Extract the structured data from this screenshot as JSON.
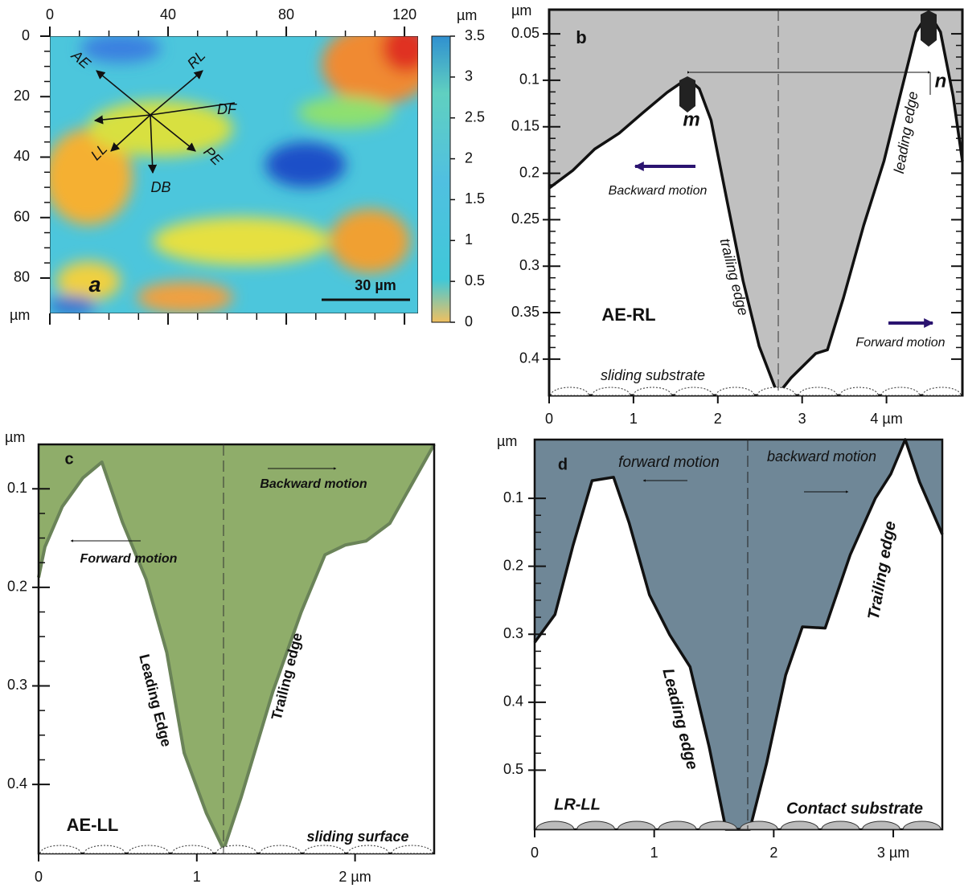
{
  "chart_data": [
    {
      "type": "image",
      "label": "a",
      "x_unit": "µm",
      "y_unit": "µm",
      "xlim": [
        0,
        124.6
      ],
      "ylim": [
        0,
        91.7
      ],
      "y_inverted": true,
      "xticks": [
        0,
        40,
        80,
        120
      ],
      "yticks": [
        0,
        20,
        40,
        60,
        80
      ],
      "colorbar": {
        "lim": [
          0,
          3.5
        ],
        "ticks": [
          0,
          0.5,
          1,
          1.5,
          2,
          2.5,
          3,
          3.5
        ]
      },
      "annotations": [
        "AE",
        "RL",
        "DF",
        "PE",
        "DB",
        "LL"
      ],
      "scale_bar": "30 µm"
    },
    {
      "type": "area",
      "label": "b",
      "y_unit": "µm",
      "xlim": [
        0,
        4.9
      ],
      "ylim": [
        0.024,
        0.439
      ],
      "y_inverted": true,
      "xticks": [
        0,
        1,
        2,
        3,
        {
          "value": 4,
          "label": "4 µm"
        }
      ],
      "yticks": [
        0.05,
        0.1,
        0.15,
        0.2,
        0.25,
        0.3,
        0.35,
        0.4
      ],
      "series": [
        {
          "color": "#c0c0c0",
          "line_color": "#111111",
          "x": [
            0,
            0.28,
            0.54,
            0.83,
            1.11,
            1.4,
            1.64,
            1.78,
            1.92,
            2.11,
            2.3,
            2.49,
            2.71,
            2.87,
            3.16,
            3.3,
            3.49,
            3.73,
            3.97,
            4.16,
            4.35,
            4.5,
            4.64,
            4.79,
            4.9
          ],
          "values": [
            0.216,
            0.197,
            0.174,
            0.157,
            0.135,
            0.113,
            0.098,
            0.109,
            0.143,
            0.23,
            0.316,
            0.386,
            0.438,
            0.42,
            0.394,
            0.39,
            0.334,
            0.256,
            0.187,
            0.117,
            0.048,
            0.027,
            0.048,
            0.117,
            0.187
          ]
        }
      ],
      "annotations": [
        "m",
        "n",
        "leading edge",
        "Backward motion",
        "trailing edge",
        "AE-RL",
        "Forward motion",
        "sliding substrate"
      ]
    },
    {
      "type": "area",
      "label": "c",
      "y_unit": "µm",
      "xlim": [
        0,
        2.5
      ],
      "ylim": [
        0.055,
        0.47
      ],
      "y_inverted": true,
      "xticks": [
        0,
        1,
        {
          "value": 2,
          "label": "2 µm"
        }
      ],
      "yticks": [
        0.1,
        0.2,
        0.3,
        0.4
      ],
      "series": [
        {
          "color": "#8fad6a",
          "line_color": "#6a8358",
          "x": [
            0,
            0.04,
            0.15,
            0.28,
            0.4,
            0.53,
            0.68,
            0.81,
            0.92,
            1.06,
            1.17,
            1.28,
            1.48,
            1.66,
            1.81,
            1.94,
            2.07,
            2.22,
            2.5
          ],
          "values": [
            0.19,
            0.159,
            0.118,
            0.089,
            0.073,
            0.134,
            0.192,
            0.266,
            0.368,
            0.429,
            0.466,
            0.413,
            0.306,
            0.225,
            0.167,
            0.157,
            0.153,
            0.135,
            0.055
          ]
        }
      ],
      "annotations": [
        "Backward motion",
        "Forward motion",
        "Leading Edge",
        "Trailing edge",
        "AE-LL",
        "sliding surface"
      ]
    },
    {
      "type": "area",
      "label": "d",
      "y_unit": "µm",
      "xlim": [
        0,
        3.41
      ],
      "ylim": [
        0.0136,
        0.587
      ],
      "y_inverted": true,
      "xticks": [
        0,
        1,
        2,
        {
          "value": 3,
          "label": "3 µm"
        }
      ],
      "yticks": [
        0.1,
        0.2,
        0.3,
        0.4,
        0.5
      ],
      "series": [
        {
          "color": "#6f8797",
          "line_color": "#111111",
          "x": [
            0,
            0.17,
            0.32,
            0.48,
            0.66,
            0.79,
            0.96,
            1.13,
            1.3,
            1.46,
            1.6,
            1.8,
            1.94,
            2.1,
            2.24,
            2.43,
            2.64,
            2.85,
            2.98,
            3.1,
            3.22,
            3.41
          ],
          "values": [
            0.312,
            0.271,
            0.17,
            0.074,
            0.069,
            0.136,
            0.242,
            0.301,
            0.348,
            0.466,
            0.587,
            0.587,
            0.49,
            0.36,
            0.289,
            0.291,
            0.183,
            0.1,
            0.064,
            0.0136,
            0.076,
            0.153
          ]
        }
      ],
      "annotations": [
        "forward motion",
        "backward motion",
        "Trailing edge",
        "Leading edge",
        "LR-LL",
        "Contact substrate"
      ]
    }
  ]
}
